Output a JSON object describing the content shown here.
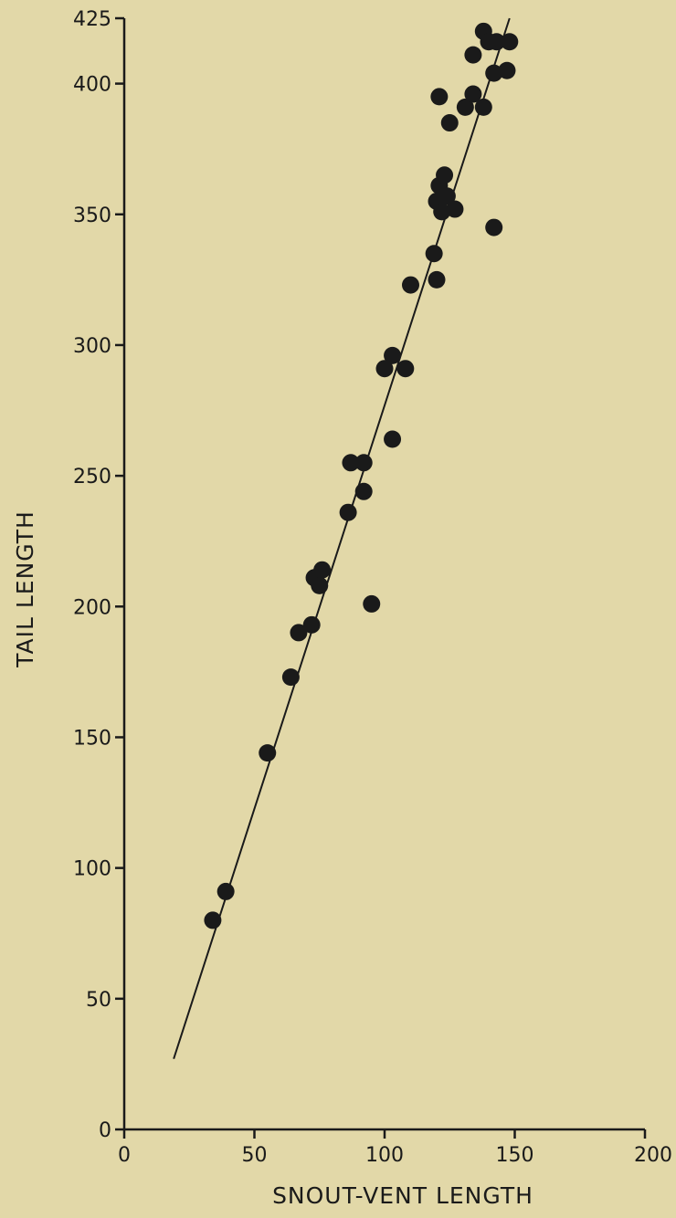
{
  "chart_data": {
    "type": "scatter",
    "title": "",
    "xlabel": "SNOUT-VENT LENGTH",
    "ylabel": "TAIL LENGTH",
    "xlim": [
      0,
      200
    ],
    "ylim": [
      0,
      425
    ],
    "x_ticks": [
      0,
      50,
      100,
      150,
      200
    ],
    "y_ticks": [
      0,
      50,
      100,
      150,
      200,
      250,
      300,
      350,
      400,
      425
    ],
    "x_tick_labels": [
      "0",
      "50",
      "100",
      "150",
      "200"
    ],
    "y_tick_labels": [
      "0",
      "50",
      "100",
      "150",
      "200",
      "250",
      "300",
      "350",
      "400",
      "425"
    ],
    "grid": false,
    "marker_color": "#1a1a1a",
    "points": [
      {
        "x": 34,
        "y": 80
      },
      {
        "x": 39,
        "y": 91
      },
      {
        "x": 55,
        "y": 144
      },
      {
        "x": 64,
        "y": 173
      },
      {
        "x": 67,
        "y": 190
      },
      {
        "x": 72,
        "y": 193
      },
      {
        "x": 73,
        "y": 211
      },
      {
        "x": 75,
        "y": 208
      },
      {
        "x": 76,
        "y": 214
      },
      {
        "x": 86,
        "y": 236
      },
      {
        "x": 87,
        "y": 255
      },
      {
        "x": 92,
        "y": 244
      },
      {
        "x": 92,
        "y": 255
      },
      {
        "x": 95,
        "y": 201
      },
      {
        "x": 100,
        "y": 291
      },
      {
        "x": 103,
        "y": 296
      },
      {
        "x": 103,
        "y": 264
      },
      {
        "x": 108,
        "y": 291
      },
      {
        "x": 110,
        "y": 323
      },
      {
        "x": 119,
        "y": 335
      },
      {
        "x": 120,
        "y": 325
      },
      {
        "x": 120,
        "y": 355
      },
      {
        "x": 121,
        "y": 395
      },
      {
        "x": 121,
        "y": 361
      },
      {
        "x": 122,
        "y": 351
      },
      {
        "x": 123,
        "y": 365
      },
      {
        "x": 124,
        "y": 357
      },
      {
        "x": 125,
        "y": 385
      },
      {
        "x": 127,
        "y": 352
      },
      {
        "x": 131,
        "y": 391
      },
      {
        "x": 134,
        "y": 396
      },
      {
        "x": 134,
        "y": 411
      },
      {
        "x": 138,
        "y": 391
      },
      {
        "x": 138,
        "y": 420
      },
      {
        "x": 140,
        "y": 416
      },
      {
        "x": 142,
        "y": 404
      },
      {
        "x": 142,
        "y": 345
      },
      {
        "x": 143,
        "y": 416
      },
      {
        "x": 147,
        "y": 405
      },
      {
        "x": 148,
        "y": 416
      }
    ],
    "fit_line": {
      "x": [
        19,
        148
      ],
      "y": [
        27,
        425
      ]
    }
  }
}
